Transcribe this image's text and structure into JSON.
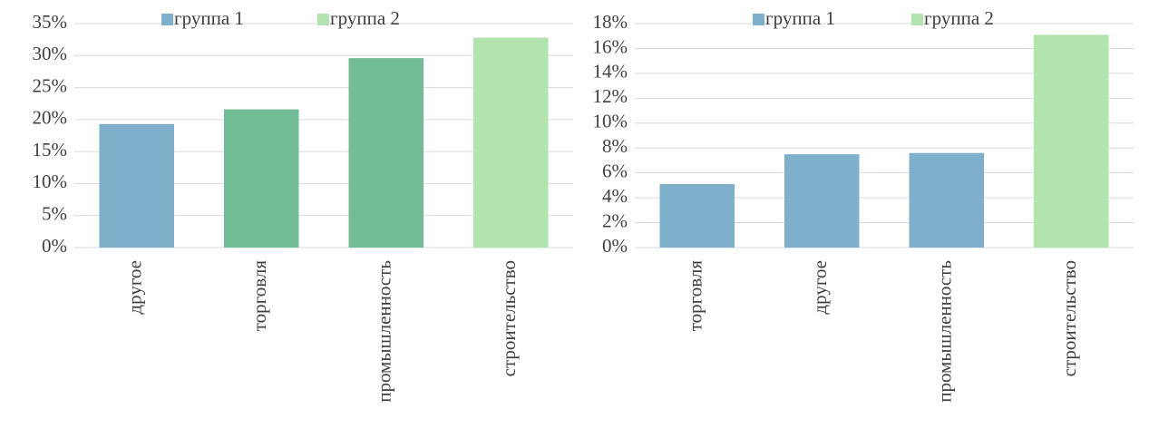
{
  "chart_data": [
    {
      "type": "bar",
      "categories": [
        "другое",
        "торговля",
        "промышленность",
        "строительство"
      ],
      "values": [
        19.3,
        21.6,
        29.6,
        32.8
      ],
      "colors": [
        "#7fb0cb",
        "#72bc96",
        "#72bc96",
        "#b2e4b0"
      ],
      "legend": [
        {
          "name": "группа 1",
          "color": "#7fb0cb"
        },
        {
          "name": "группа 2",
          "color": "#b2e4b0"
        }
      ],
      "ylim": [
        0,
        35
      ],
      "yticks": [
        {
          "value": 0,
          "label": "0%"
        },
        {
          "value": 5,
          "label": "5%"
        },
        {
          "value": 10,
          "label": "10%"
        },
        {
          "value": 15,
          "label": "15%"
        },
        {
          "value": 20,
          "label": "20%"
        },
        {
          "value": 25,
          "label": "25%"
        },
        {
          "value": 30,
          "label": "30%"
        },
        {
          "value": 35,
          "label": "35%"
        }
      ],
      "grid": true
    },
    {
      "type": "bar",
      "categories": [
        "торговля",
        "другое",
        "промышленность",
        "строительство"
      ],
      "values": [
        5.1,
        7.5,
        7.6,
        17.1
      ],
      "colors": [
        "#7fb0cb",
        "#7fb0cb",
        "#7fb0cb",
        "#b2e4b0"
      ],
      "legend": [
        {
          "name": "группа 1",
          "color": "#7fb0cb"
        },
        {
          "name": "группа 2",
          "color": "#b2e4b0"
        }
      ],
      "ylim": [
        0,
        18
      ],
      "yticks": [
        {
          "value": 0,
          "label": "0%"
        },
        {
          "value": 2,
          "label": "2%"
        },
        {
          "value": 4,
          "label": "4%"
        },
        {
          "value": 6,
          "label": "6%"
        },
        {
          "value": 8,
          "label": "8%"
        },
        {
          "value": 10,
          "label": "10%"
        },
        {
          "value": 12,
          "label": "12%"
        },
        {
          "value": 14,
          "label": "14%"
        },
        {
          "value": 16,
          "label": "16%"
        },
        {
          "value": 18,
          "label": "18%"
        }
      ],
      "grid": true
    }
  ]
}
